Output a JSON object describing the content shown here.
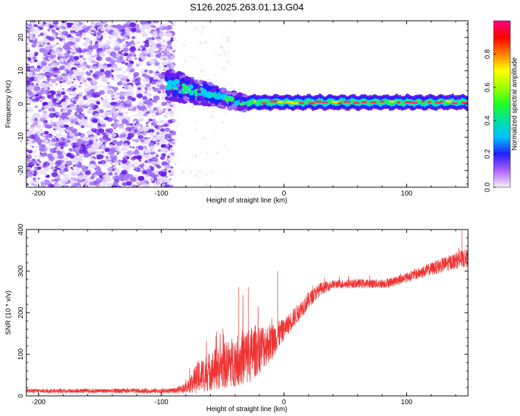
{
  "title": "S126.2025.263.01.13.G04",
  "colors": {
    "snr_line": "#ee3333",
    "band_colors": [
      "#ffffff",
      "#e3d8ff",
      "#a070f5",
      "#6a1ee8",
      "#2020ff",
      "#00d0ff",
      "#20f060",
      "#ff3060"
    ]
  },
  "chart_data": [
    {
      "type": "heatmap",
      "title": "S126.2025.263.01.13.G04",
      "xlabel": "Height of straight line (km)",
      "ylabel": "Frequency (Hz)",
      "xlim": [
        -210,
        150
      ],
      "ylim": [
        -25,
        25
      ],
      "xticks": [
        -200,
        -100,
        0,
        100
      ],
      "yticks": [
        -20,
        -10,
        0,
        10,
        20
      ],
      "regions": [
        {
          "label": "scattered noise",
          "x_range": [
            -210,
            -90
          ],
          "freq_range": [
            -25,
            25
          ]
        },
        {
          "label": "transition",
          "x_range": [
            -95,
            -30
          ],
          "freq_center_start": 6,
          "freq_center_end": 0
        },
        {
          "label": "steady signal",
          "x_range": [
            -30,
            150
          ],
          "freq_center": 0.5
        }
      ],
      "colorbar": {
        "label": "Normalized spectral amplitude",
        "range": [
          0,
          1
        ],
        "ticks": [
          "0.0",
          "0.2",
          "0.4",
          "0.6",
          "0.8"
        ],
        "colors": [
          {
            "value": 0.0,
            "color": "#f7f0ff"
          },
          {
            "value": 0.1,
            "color": "#b060ff"
          },
          {
            "value": 0.2,
            "color": "#2020ff"
          },
          {
            "value": 0.3,
            "color": "#00c0ff"
          },
          {
            "value": 0.4,
            "color": "#00e0a0"
          },
          {
            "value": 0.5,
            "color": "#20ff20"
          },
          {
            "value": 0.6,
            "color": "#a0ff00"
          },
          {
            "value": 0.7,
            "color": "#ffff00"
          },
          {
            "value": 0.8,
            "color": "#ff8000"
          },
          {
            "value": 0.9,
            "color": "#ff0000"
          },
          {
            "value": 1.0,
            "color": "#ff0080"
          }
        ]
      }
    },
    {
      "type": "line",
      "series": [
        {
          "name": "SNR"
        }
      ],
      "xlabel": "Height of straight line (km)",
      "ylabel": "SNR (10 * v/v)",
      "xlim": [
        -210,
        150
      ],
      "ylim": [
        0,
        400
      ],
      "xticks": [
        -200,
        -100,
        0,
        100
      ],
      "yticks": [
        0,
        100,
        200,
        300,
        400
      ],
      "trend": [
        [
          -210,
          12
        ],
        [
          -90,
          12
        ],
        [
          -80,
          20
        ],
        [
          -70,
          45
        ],
        [
          -60,
          60
        ],
        [
          -50,
          70
        ],
        [
          -40,
          85
        ],
        [
          -30,
          95
        ],
        [
          -20,
          115
        ],
        [
          -10,
          130
        ],
        [
          0,
          160
        ],
        [
          10,
          195
        ],
        [
          20,
          230
        ],
        [
          30,
          258
        ],
        [
          40,
          268
        ],
        [
          60,
          270
        ],
        [
          80,
          270
        ],
        [
          90,
          275
        ],
        [
          100,
          285
        ],
        [
          110,
          295
        ],
        [
          120,
          305
        ],
        [
          130,
          315
        ],
        [
          140,
          325
        ],
        [
          150,
          332
        ]
      ],
      "noise_envelope": [
        [
          -210,
          5
        ],
        [
          -90,
          6
        ],
        [
          -80,
          12
        ],
        [
          -70,
          40
        ],
        [
          -50,
          55
        ],
        [
          -30,
          70
        ],
        [
          -20,
          60
        ],
        [
          -10,
          45
        ],
        [
          0,
          25
        ],
        [
          20,
          20
        ],
        [
          40,
          10
        ],
        [
          100,
          12
        ],
        [
          150,
          22
        ]
      ],
      "peaks": [
        {
          "x": -55,
          "y": 155
        },
        {
          "x": -37,
          "y": 262
        },
        {
          "x": -29,
          "y": 262
        },
        {
          "x": -5,
          "y": 300
        },
        {
          "x": 145,
          "y": 398
        }
      ]
    }
  ]
}
